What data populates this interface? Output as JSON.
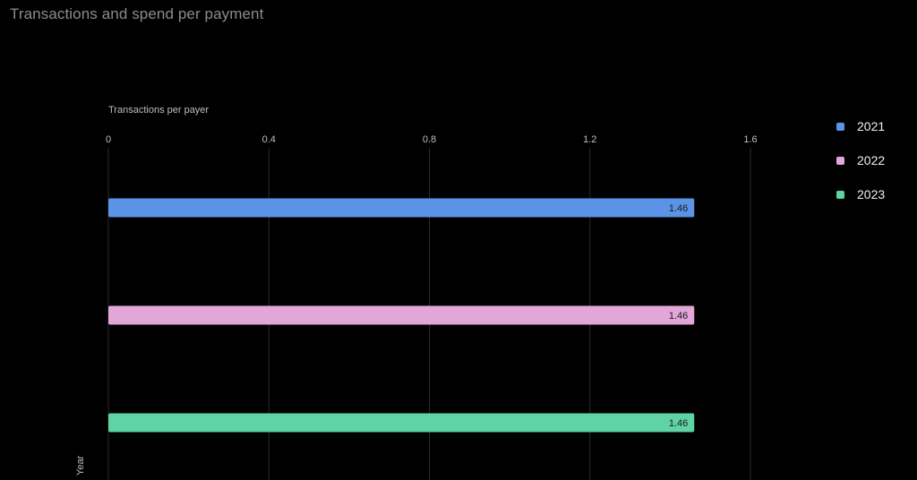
{
  "title": "Transactions and spend per payment",
  "chart_data": {
    "type": "bar",
    "orientation": "horizontal",
    "xlabel": "Transactions per payer",
    "ylabel": "Year",
    "xlim": [
      0,
      1.6
    ],
    "x_ticks": [
      "0",
      "0.4",
      "0.8",
      "1.2",
      "1.6"
    ],
    "grid": true,
    "legend_position": "right",
    "series": [
      {
        "name": "2021",
        "value": 1.46,
        "label": "1.46",
        "color": "#5b94e6"
      },
      {
        "name": "2022",
        "value": 1.46,
        "label": "1.46",
        "color": "#e3a6d9"
      },
      {
        "name": "2023",
        "value": 1.46,
        "label": "1.46",
        "color": "#5fd3a3"
      }
    ]
  }
}
